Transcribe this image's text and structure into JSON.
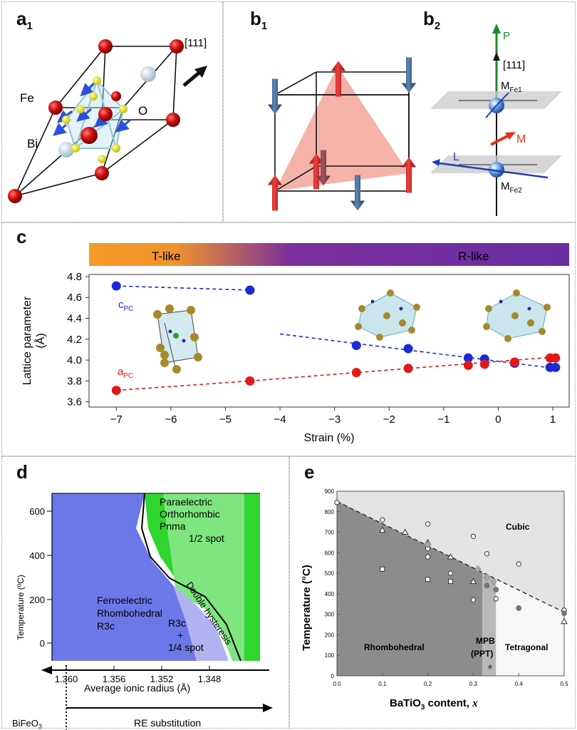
{
  "panel_a1": {
    "label": "a",
    "sub": "1",
    "direction": "[111]",
    "fe": "Fe",
    "o": "O",
    "bi": "Bi"
  },
  "panel_b1": {
    "label": "b",
    "sub": "1"
  },
  "panel_b2": {
    "label": "b",
    "sub": "2",
    "p": "P",
    "direction": "[111]",
    "m_fe1": "M",
    "m_fe1_sub": "Fe1",
    "m": "M",
    "l": "L",
    "m_fe2": "M",
    "m_fe2_sub": "Fe2"
  },
  "panel_c": {
    "label": "c",
    "bar_left": "T-like",
    "bar_right": "R-like",
    "c_label": "c",
    "c_sub": "PC",
    "a_label": "a",
    "a_sub": "PC",
    "colors": {
      "c": "#1a2bd6",
      "a": "#e01919",
      "bar_start": "#f39a2a",
      "bar_end": "#6a2ea2"
    }
  },
  "panel_d": {
    "label": "d",
    "xlabel": "Average ionic radius (Å)",
    "ylabel": "Temperature (ºC)",
    "x_ticks": [
      "1.360",
      "1.356",
      "1.352",
      "1.348"
    ],
    "y_ticks": [
      "0",
      "200",
      "400",
      "600"
    ],
    "region_para": [
      "Paraelectric",
      "Orthorhombic",
      "Pnma",
      "1/2 spot"
    ],
    "region_ferro": [
      "Ferroelectric",
      "Rhombohedral",
      "R3c"
    ],
    "region_mixed": [
      "R3c",
      "+",
      "1/4 spot"
    ],
    "double": "Double hysteresis",
    "bottom_left": "BiFeO",
    "bottom_left_sub": "3",
    "bottom_right": "RE substitution"
  },
  "panel_e": {
    "label": "e",
    "xlabel": "BaTiO",
    "xlabel_sub": "3",
    "xlabel_tail": " content, ",
    "xlabel_var": "x",
    "ylabel": "Temperature (°C)",
    "x_ticks": [
      "0.0",
      "0.1",
      "0.2",
      "0.3",
      "0.4",
      "0.5"
    ],
    "y_ticks": [
      "0",
      "100",
      "200",
      "300",
      "400",
      "500",
      "600",
      "700",
      "800",
      "900"
    ],
    "cubic": "Cubic",
    "rhombo": "Rhombohedral",
    "mpb1": "MPB",
    "mpb2": "(PPT)",
    "tetra": "Tetragonal"
  },
  "chart_data": [
    {
      "type": "scatter",
      "panel": "c",
      "xlabel": "Strain (%)",
      "ylabel": "Lattice parameter (Å)",
      "xlim": [
        -7.5,
        1.3
      ],
      "ylim": [
        3.55,
        4.82
      ],
      "x_ticks": [
        -7,
        -6,
        -5,
        -4,
        -3,
        -2,
        -1,
        0,
        1
      ],
      "y_ticks": [
        3.6,
        3.8,
        4.0,
        4.2,
        4.4,
        4.6,
        4.8
      ],
      "series": [
        {
          "name": "cPC",
          "points": [
            [
              -7.0,
              4.71
            ],
            [
              -4.55,
              4.67
            ],
            [
              -2.6,
              4.14
            ],
            [
              -1.65,
              4.11
            ],
            [
              -0.55,
              4.02
            ],
            [
              -0.25,
              4.01
            ],
            [
              0.3,
              3.97
            ],
            [
              0.95,
              3.93
            ],
            [
              1.05,
              3.93
            ]
          ]
        },
        {
          "name": "aPC",
          "points": [
            [
              -7.0,
              3.71
            ],
            [
              -4.55,
              3.8
            ],
            [
              -2.6,
              3.88
            ],
            [
              -1.65,
              3.92
            ],
            [
              -0.55,
              3.95
            ],
            [
              -0.25,
              3.96
            ],
            [
              0.3,
              3.98
            ],
            [
              0.95,
              4.02
            ],
            [
              1.05,
              4.02
            ]
          ]
        }
      ]
    },
    {
      "type": "scatter",
      "panel": "e",
      "xlabel": "BaTiO3 content, x",
      "ylabel": "Temperature (°C)",
      "xlim": [
        0,
        0.5
      ],
      "ylim": [
        0,
        900
      ],
      "x_ticks": [
        0.0,
        0.1,
        0.2,
        0.3,
        0.4,
        0.5
      ],
      "y_ticks": [
        0,
        100,
        200,
        300,
        400,
        500,
        600,
        700,
        800,
        900
      ],
      "series": [
        {
          "marker": "open-circle",
          "points": [
            [
              0.0,
              845
            ],
            [
              0.1,
              760
            ],
            [
              0.2,
              740
            ],
            [
              0.2,
              620
            ],
            [
              0.2,
              580
            ],
            [
              0.25,
              500
            ],
            [
              0.3,
              680
            ],
            [
              0.3,
              370
            ],
            [
              0.33,
              595
            ],
            [
              0.35,
              375
            ],
            [
              0.4,
              545
            ],
            [
              0.5,
              320
            ]
          ]
        },
        {
          "marker": "triangle",
          "points": [
            [
              0.1,
              710
            ],
            [
              0.15,
              700
            ],
            [
              0.2,
              650
            ],
            [
              0.25,
              580
            ],
            [
              0.3,
              460
            ],
            [
              0.5,
              265
            ]
          ]
        },
        {
          "marker": "square",
          "points": [
            [
              0.1,
              520
            ],
            [
              0.2,
              470
            ],
            [
              0.25,
              460
            ]
          ]
        },
        {
          "marker": "filled-circle",
          "points": [
            [
              0.33,
              440
            ],
            [
              0.35,
              420
            ],
            [
              0.4,
              330
            ],
            [
              0.5,
              305
            ]
          ]
        },
        {
          "marker": "diamond",
          "points": [
            [
              0.2,
              640
            ],
            [
              0.31,
              520
            ],
            [
              0.33,
              480
            ],
            [
              0.345,
              460
            ]
          ]
        }
      ],
      "boundary_line": [
        [
          0.0,
          850
        ],
        [
          0.5,
          310
        ]
      ]
    }
  ]
}
